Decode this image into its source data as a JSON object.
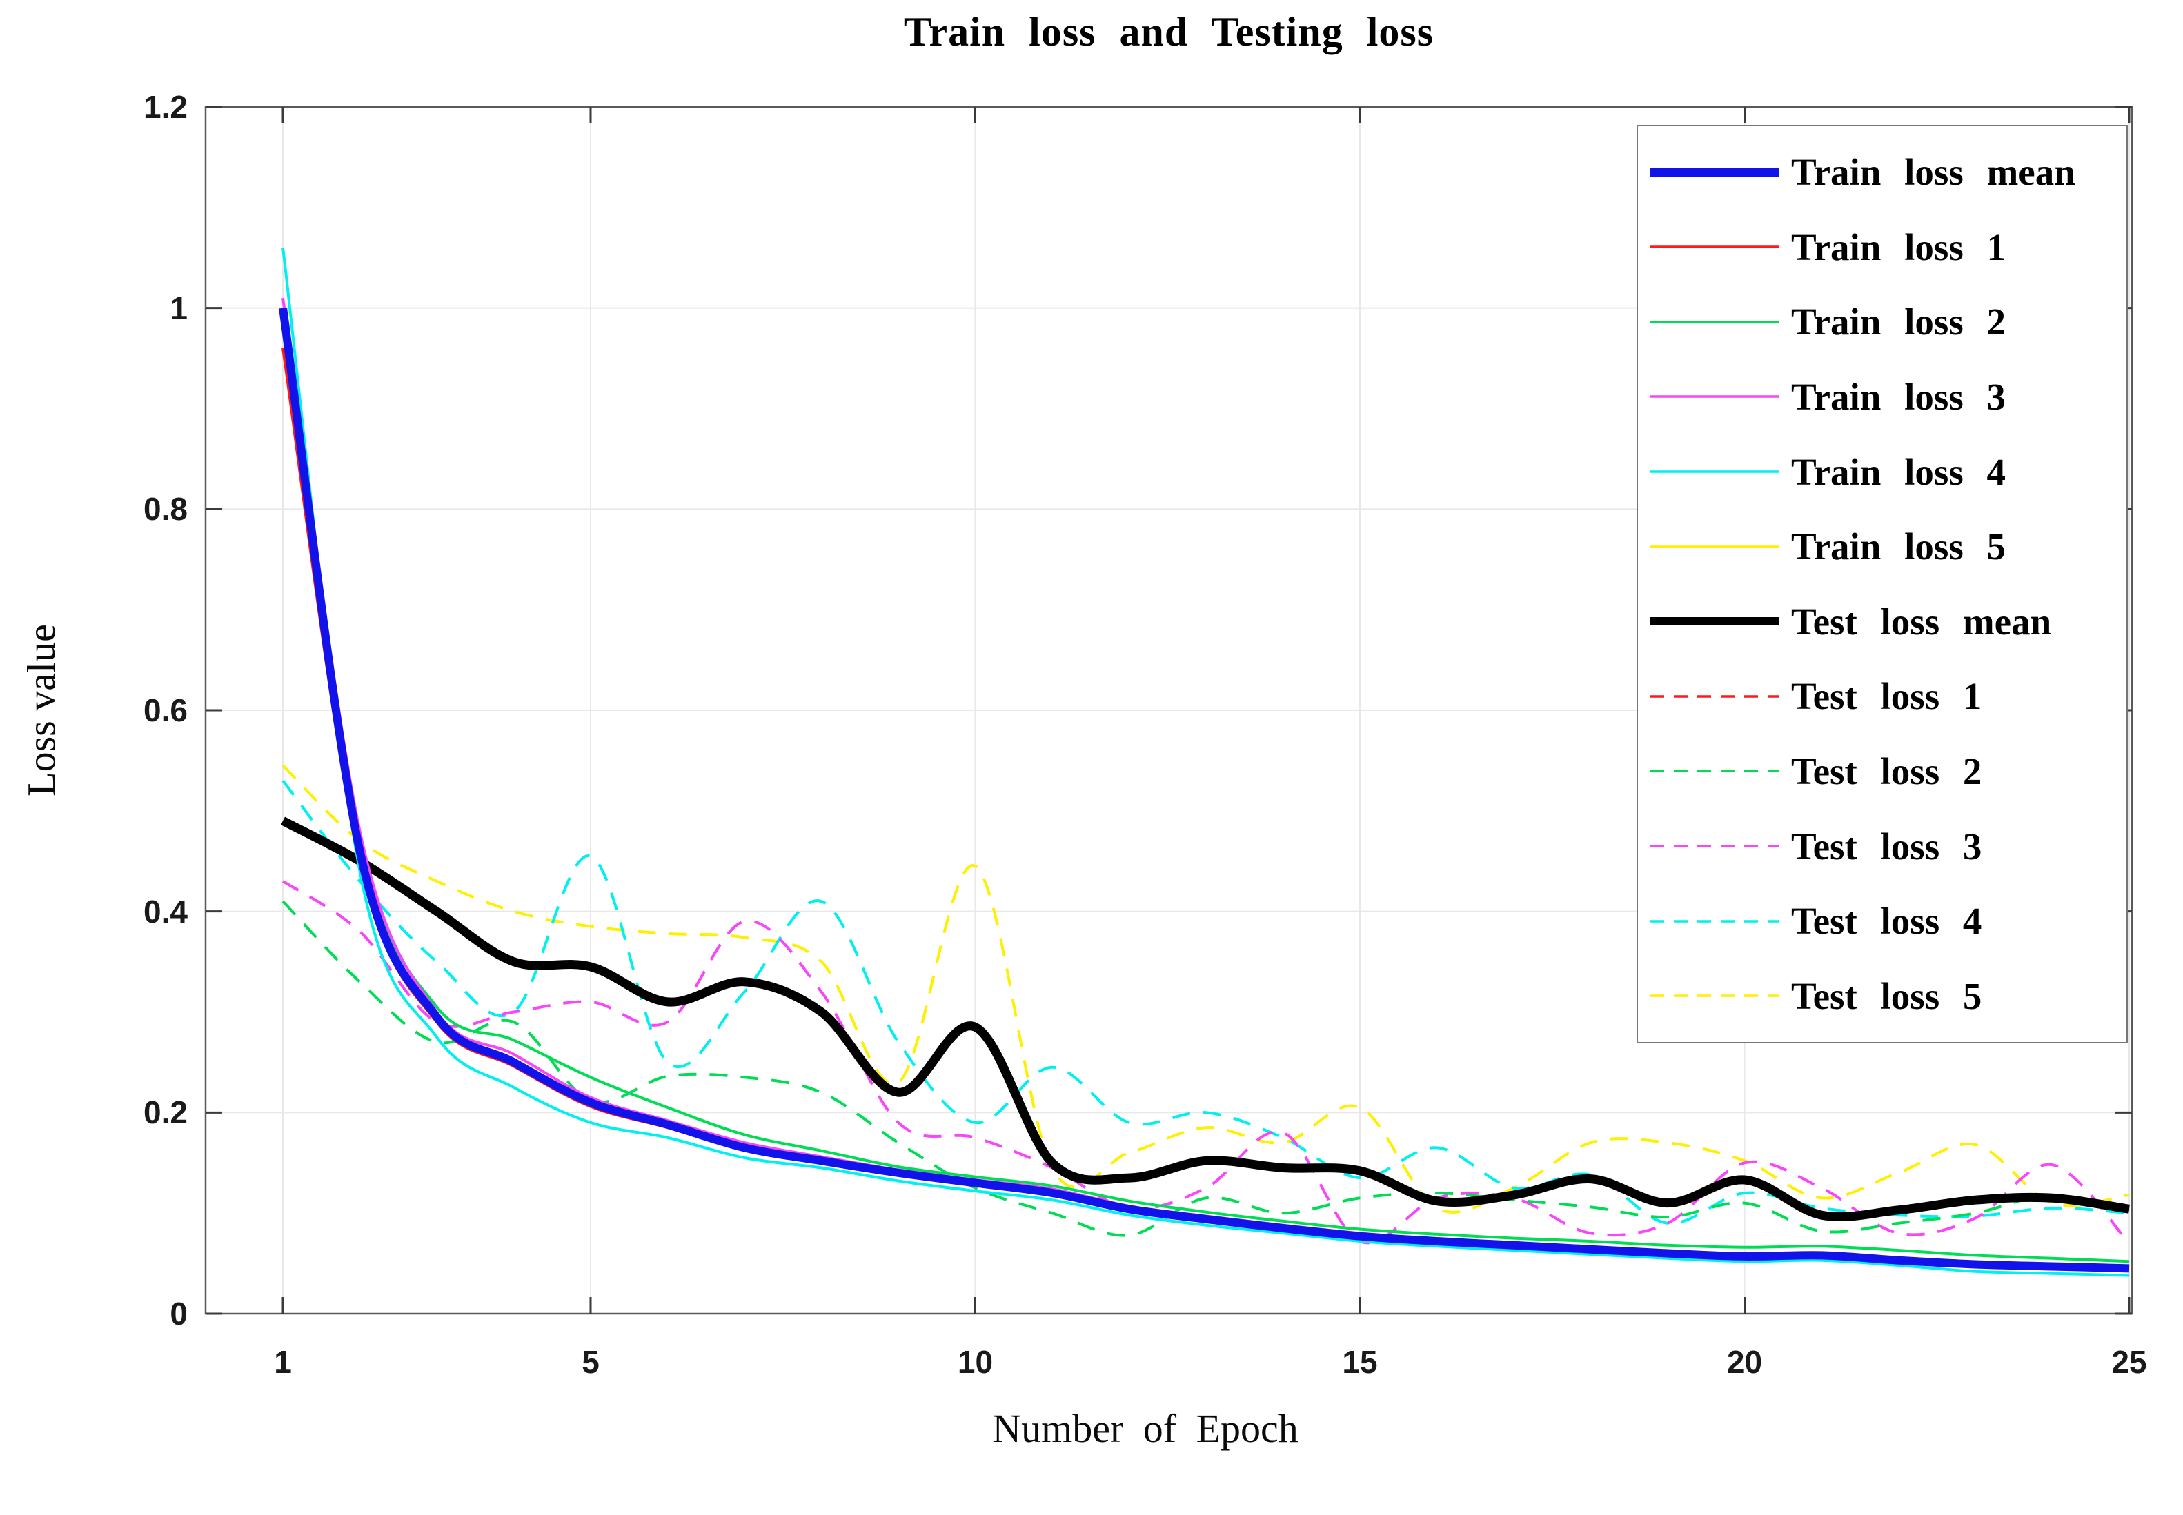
{
  "chart_data": {
    "type": "line",
    "title": "Train loss and Testing loss",
    "xlabel": "Number of Epoch",
    "ylabel": "Loss value",
    "xlim": [
      1,
      25
    ],
    "ylim": [
      0,
      1.2
    ],
    "grid": "on",
    "legend_position": "upper right",
    "x": [
      1,
      2,
      3,
      4,
      5,
      6,
      7,
      8,
      9,
      10,
      11,
      12,
      13,
      14,
      15,
      16,
      17,
      18,
      19,
      20,
      21,
      22,
      23,
      24,
      25
    ],
    "series": [
      {
        "label": "Train loss mean",
        "color": "#1212EA",
        "dashed": false,
        "thick": true,
        "values": [
          1.0,
          0.46,
          0.295,
          0.25,
          0.21,
          0.188,
          0.165,
          0.152,
          0.14,
          0.13,
          0.12,
          0.104,
          0.094,
          0.085,
          0.077,
          0.072,
          0.068,
          0.064,
          0.06,
          0.057,
          0.058,
          0.053,
          0.049,
          0.047,
          0.045
        ]
      },
      {
        "label": "Train loss 1",
        "color": "#FF1A1A",
        "dashed": false,
        "thick": false,
        "values": [
          0.96,
          0.45,
          0.29,
          0.246,
          0.206,
          0.185,
          0.163,
          0.15,
          0.138,
          0.128,
          0.118,
          0.102,
          0.092,
          0.084,
          0.076,
          0.071,
          0.067,
          0.063,
          0.059,
          0.056,
          0.057,
          0.052,
          0.048,
          0.046,
          0.044
        ]
      },
      {
        "label": "Train loss 2",
        "color": "#00DD55",
        "dashed": false,
        "thick": false,
        "values": [
          0.98,
          0.47,
          0.305,
          0.272,
          0.235,
          0.205,
          0.178,
          0.162,
          0.146,
          0.136,
          0.127,
          0.112,
          0.101,
          0.092,
          0.084,
          0.079,
          0.075,
          0.072,
          0.068,
          0.066,
          0.067,
          0.063,
          0.058,
          0.055,
          0.052
        ]
      },
      {
        "label": "Train loss 3",
        "color": "#F846F8",
        "dashed": false,
        "thick": false,
        "values": [
          1.01,
          0.48,
          0.3,
          0.258,
          0.215,
          0.192,
          0.17,
          0.156,
          0.143,
          0.133,
          0.124,
          0.107,
          0.097,
          0.088,
          0.08,
          0.074,
          0.07,
          0.066,
          0.062,
          0.058,
          0.059,
          0.054,
          0.05,
          0.048,
          0.046
        ]
      },
      {
        "label": "Train loss 4",
        "color": "#00F0F0",
        "dashed": false,
        "thick": false,
        "values": [
          1.06,
          0.44,
          0.275,
          0.225,
          0.19,
          0.175,
          0.155,
          0.145,
          0.132,
          0.122,
          0.113,
          0.098,
          0.088,
          0.08,
          0.072,
          0.067,
          0.063,
          0.059,
          0.055,
          0.052,
          0.053,
          0.048,
          0.042,
          0.04,
          0.038
        ]
      },
      {
        "label": "Train loss 5",
        "color": "#FFEF00",
        "dashed": false,
        "thick": false,
        "values": [
          0.99,
          0.455,
          0.292,
          0.248,
          0.208,
          0.186,
          0.164,
          0.151,
          0.139,
          0.129,
          0.119,
          0.103,
          0.093,
          0.084,
          0.076,
          0.071,
          0.067,
          0.063,
          0.059,
          0.056,
          0.057,
          0.052,
          0.048,
          0.046,
          0.044
        ]
      },
      {
        "label": "Test loss mean",
        "color": "#000000",
        "dashed": false,
        "thick": true,
        "values": [
          0.49,
          0.45,
          0.4,
          0.35,
          0.345,
          0.31,
          0.33,
          0.3,
          0.22,
          0.285,
          0.15,
          0.135,
          0.152,
          0.145,
          0.142,
          0.112,
          0.118,
          0.134,
          0.11,
          0.133,
          0.098,
          0.103,
          0.113,
          0.115,
          0.104
        ]
      },
      {
        "label": "Test loss 1",
        "color": "#FF1A1A",
        "dashed": true,
        "thick": false,
        "values": [
          0.488,
          0.448,
          0.398,
          0.348,
          0.343,
          0.308,
          0.328,
          0.298,
          0.218,
          0.283,
          0.149,
          0.134,
          0.15,
          0.143,
          0.14,
          0.111,
          0.116,
          0.132,
          0.109,
          0.131,
          0.097,
          0.102,
          0.112,
          0.113,
          0.103
        ]
      },
      {
        "label": "Test loss 2",
        "color": "#00DD55",
        "dashed": true,
        "thick": false,
        "values": [
          0.41,
          0.33,
          0.27,
          0.29,
          0.212,
          0.236,
          0.235,
          0.22,
          0.17,
          0.125,
          0.1,
          0.078,
          0.115,
          0.1,
          0.115,
          0.12,
          0.113,
          0.106,
          0.096,
          0.11,
          0.082,
          0.09,
          0.1,
          0.118,
          0.103
        ]
      },
      {
        "label": "Test loss 3",
        "color": "#F846F8",
        "dashed": true,
        "thick": false,
        "values": [
          0.43,
          0.38,
          0.29,
          0.3,
          0.31,
          0.29,
          0.39,
          0.32,
          0.19,
          0.175,
          0.145,
          0.105,
          0.125,
          0.18,
          0.072,
          0.115,
          0.115,
          0.08,
          0.09,
          0.15,
          0.125,
          0.08,
          0.095,
          0.148,
          0.07
        ]
      },
      {
        "label": "Test loss 4",
        "color": "#00F0F0",
        "dashed": true,
        "thick": false,
        "values": [
          0.53,
          0.43,
          0.35,
          0.3,
          0.455,
          0.25,
          0.32,
          0.41,
          0.27,
          0.19,
          0.245,
          0.19,
          0.2,
          0.175,
          0.135,
          0.165,
          0.125,
          0.138,
          0.09,
          0.12,
          0.105,
          0.098,
          0.097,
          0.105,
          0.1
        ]
      },
      {
        "label": "Test loss 5",
        "color": "#FFEF00",
        "dashed": true,
        "thick": false,
        "values": [
          0.545,
          0.47,
          0.43,
          0.4,
          0.385,
          0.378,
          0.374,
          0.35,
          0.23,
          0.445,
          0.145,
          0.16,
          0.185,
          0.17,
          0.205,
          0.105,
          0.125,
          0.17,
          0.17,
          0.152,
          0.115,
          0.14,
          0.168,
          0.11,
          0.118
        ]
      }
    ]
  },
  "axes": {
    "x_ticks": [
      {
        "v": 1,
        "label": "1"
      },
      {
        "v": 5,
        "label": "5"
      },
      {
        "v": 10,
        "label": "10"
      },
      {
        "v": 15,
        "label": "15"
      },
      {
        "v": 20,
        "label": "20"
      },
      {
        "v": 25,
        "label": "25"
      }
    ],
    "y_ticks": [
      {
        "v": 0,
        "label": "0"
      },
      {
        "v": 0.2,
        "label": "0.2"
      },
      {
        "v": 0.4,
        "label": "0.4"
      },
      {
        "v": 0.6,
        "label": "0.6"
      },
      {
        "v": 0.8,
        "label": "0.8"
      },
      {
        "v": 1,
        "label": "1"
      },
      {
        "v": 1.2,
        "label": "1.2"
      }
    ]
  },
  "style_colors": {
    "grid": "#E8E8E8",
    "box": "#5a5a5a",
    "tick": "#3a3a3a",
    "background": "#FFFFFF"
  }
}
